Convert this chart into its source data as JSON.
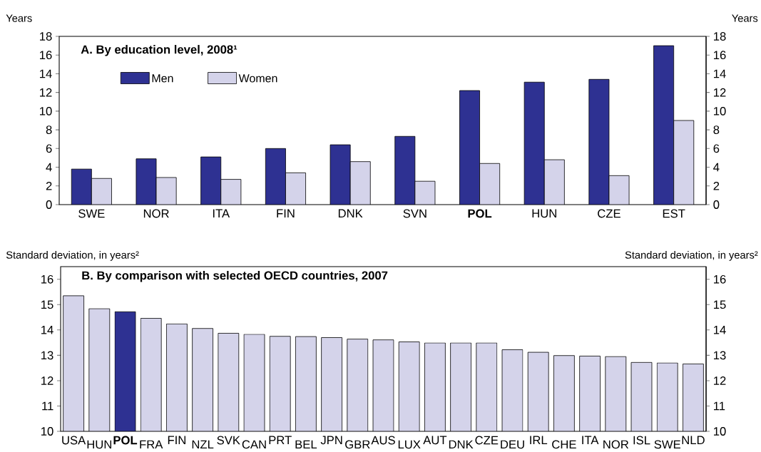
{
  "chart_data": [
    {
      "type": "bar",
      "title": "A. By education level, 2008¹",
      "ylabel": "Years",
      "y2label": "Years",
      "categories": [
        "SWE",
        "NOR",
        "ITA",
        "FIN",
        "DNK",
        "SVN",
        "**POL**",
        "HUN",
        "CZE",
        "EST"
      ],
      "series": [
        {
          "name": "Men",
          "color": "#2e3192",
          "values": [
            3.8,
            4.9,
            5.1,
            6.0,
            6.4,
            7.3,
            12.2,
            13.1,
            13.4,
            17.0
          ]
        },
        {
          "name": "Women",
          "color": "#d4d3ea",
          "values": [
            2.8,
            2.9,
            2.7,
            3.4,
            4.6,
            2.5,
            4.4,
            4.8,
            3.1,
            9.0
          ]
        }
      ],
      "ylim": [
        0,
        18
      ],
      "yticks": [
        0,
        2,
        4,
        6,
        8,
        10,
        12,
        14,
        16,
        18
      ],
      "y2lim": [
        0,
        18
      ],
      "y2ticks": [
        0,
        2,
        4,
        6,
        8,
        10,
        12,
        14,
        16,
        18
      ],
      "legend": "top left"
    },
    {
      "type": "bar",
      "title": "B. By comparison with selected OECD countries, 2007",
      "ylabel": "Standard deviation, in years²",
      "y2label": "Standard deviation, in years²",
      "categories": [
        "USA",
        "HUN",
        "**POL**",
        "FRA",
        "FIN",
        "NZL",
        "SVK",
        "CAN",
        "PRT",
        "BEL",
        "JPN",
        "GBR",
        "AUS",
        "LUX",
        "AUT",
        "DNK",
        "CZE",
        "DEU",
        "IRL",
        "CHE",
        "ITA",
        "NOR",
        "ISL",
        "SWE",
        "NLD"
      ],
      "values": [
        15.35,
        14.84,
        14.72,
        14.46,
        14.24,
        14.06,
        13.87,
        13.83,
        13.75,
        13.74,
        13.7,
        13.64,
        13.61,
        13.53,
        13.49,
        13.49,
        13.49,
        13.22,
        13.12,
        12.99,
        12.97,
        12.95,
        12.72,
        12.7,
        12.66
      ],
      "colors": [
        "#d4d3ea",
        "#d4d3ea",
        "#2e3192",
        "#d4d3ea",
        "#d4d3ea",
        "#d4d3ea",
        "#d4d3ea",
        "#d4d3ea",
        "#d4d3ea",
        "#d4d3ea",
        "#d4d3ea",
        "#d4d3ea",
        "#d4d3ea",
        "#d4d3ea",
        "#d4d3ea",
        "#d4d3ea",
        "#d4d3ea",
        "#d4d3ea",
        "#d4d3ea",
        "#d4d3ea",
        "#d4d3ea",
        "#d4d3ea",
        "#d4d3ea",
        "#d4d3ea",
        "#d4d3ea"
      ],
      "ylim": [
        10,
        16.5
      ],
      "yticks": [
        10,
        11,
        12,
        13,
        14,
        15,
        16
      ],
      "y2lim": [
        10,
        16.5
      ],
      "y2ticks": [
        10,
        11,
        12,
        13,
        14,
        15,
        16
      ]
    }
  ]
}
